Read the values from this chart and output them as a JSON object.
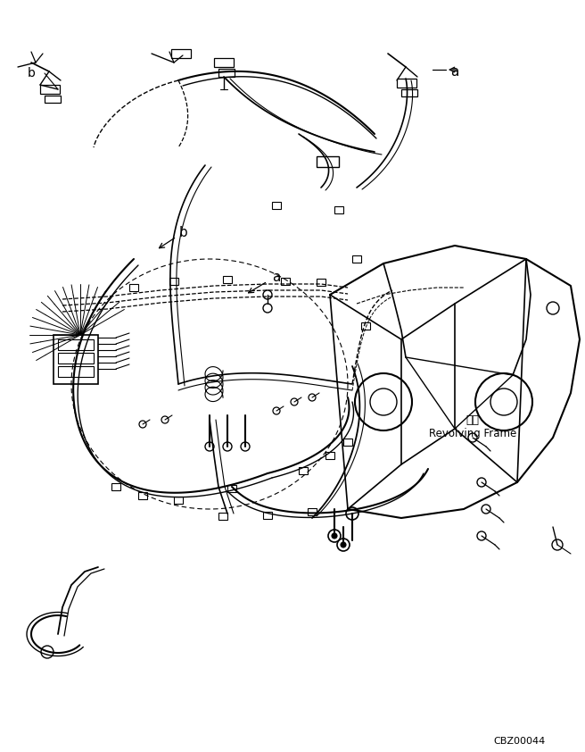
{
  "bg_color": "#ffffff",
  "lc": "#000000",
  "fig_width": 6.56,
  "fig_height": 8.42,
  "dpi": 100,
  "watermark": "CBZ00044",
  "rf_label_jp": "艵台",
  "rf_label_en": "Revolving Frame",
  "label_a_top": "a",
  "label_b_top": "b",
  "label_a_center": "a",
  "label_b_center": "b"
}
